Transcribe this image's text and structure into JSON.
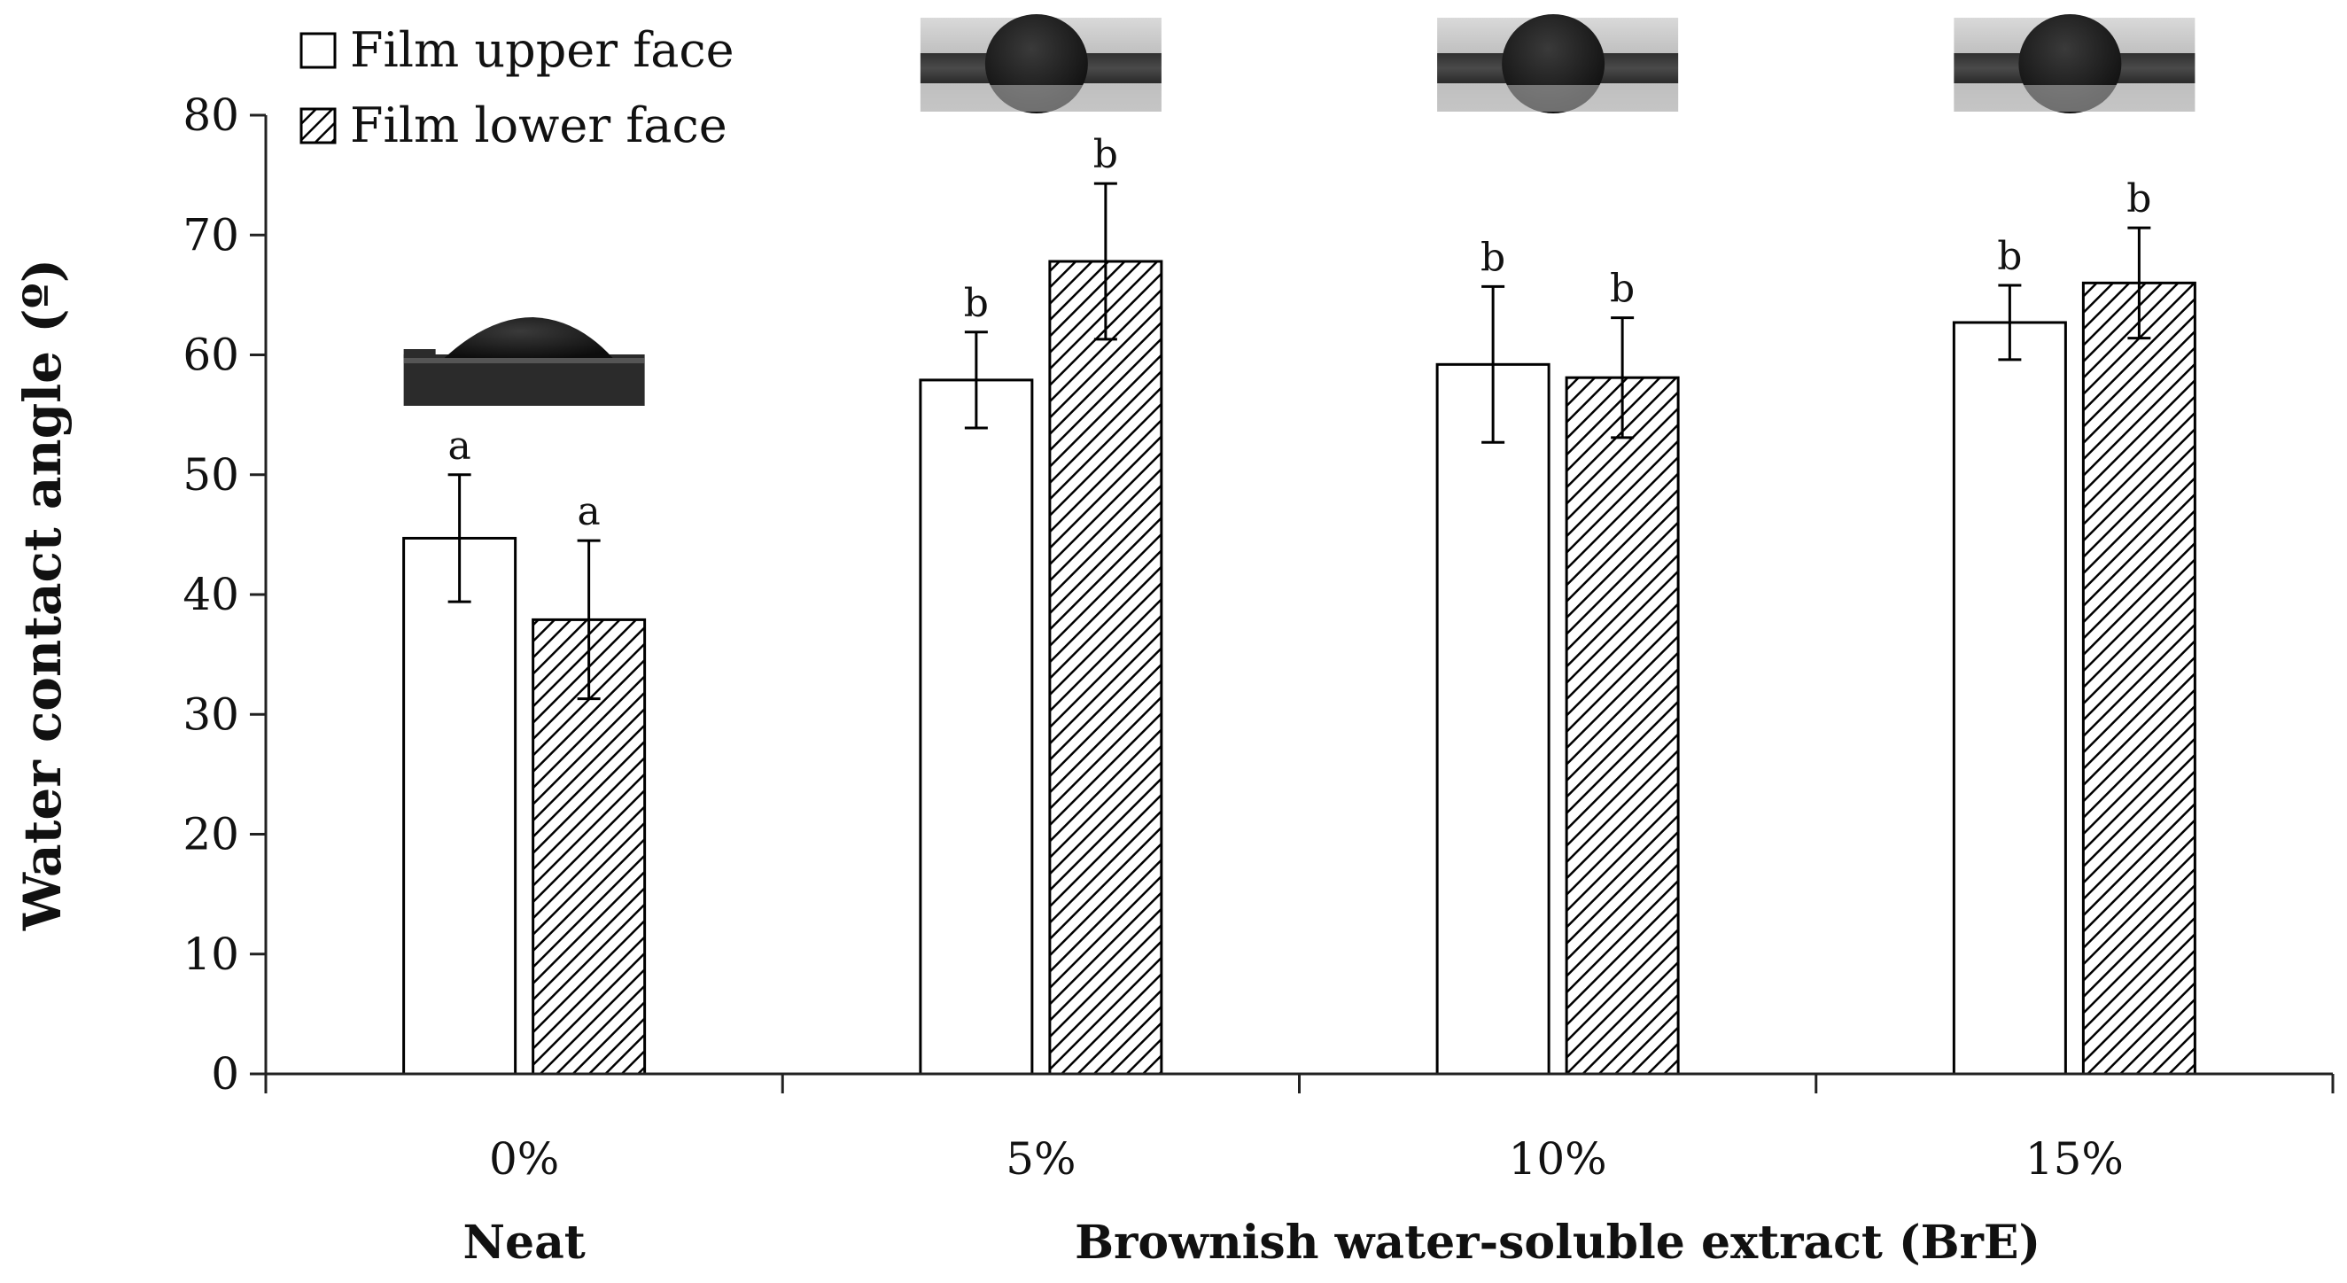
{
  "chart_data": {
    "type": "bar",
    "ylabel": "Water contact angle (º)",
    "ylim": [
      0,
      80
    ],
    "yticks": [
      0,
      10,
      20,
      30,
      40,
      50,
      60,
      70,
      80
    ],
    "categories": [
      "0%",
      "5%",
      "10%",
      "15%"
    ],
    "group_labels": [
      {
        "text": "Neat",
        "covers": [
          "0%"
        ]
      },
      {
        "text": "Brownish water-soluble extract (BrE)",
        "covers": [
          "5%",
          "10%",
          "15%"
        ]
      }
    ],
    "legend_position": "top-left",
    "series": [
      {
        "name": "Film upper face",
        "fill": "none",
        "values": [
          44.7,
          57.9,
          59.2,
          62.7
        ],
        "errors": [
          5.3,
          4.0,
          6.5,
          3.1
        ],
        "significance": [
          "a",
          "b",
          "b",
          "b"
        ]
      },
      {
        "name": "Film lower face",
        "fill": "diagonal-hatch",
        "values": [
          37.9,
          67.8,
          58.1,
          66.0
        ],
        "errors": [
          6.6,
          6.5,
          5.0,
          4.6
        ],
        "significance": [
          "a",
          "b",
          "b",
          "b"
        ]
      }
    ],
    "insets": [
      {
        "category": "0%",
        "icon": "droplet-photo-flat"
      },
      {
        "category": "5%",
        "icon": "droplet-photo-round"
      },
      {
        "category": "10%",
        "icon": "droplet-photo-round"
      },
      {
        "category": "15%",
        "icon": "droplet-photo-round"
      }
    ],
    "colors": {
      "bar_stroke": "#000000",
      "bar_fill": "#ffffff",
      "hatch": "#000000",
      "axis": "#222222"
    }
  }
}
